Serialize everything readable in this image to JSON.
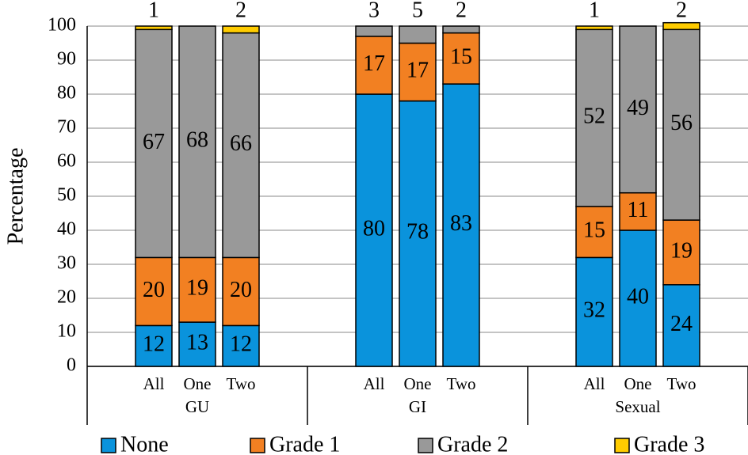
{
  "chart_data": {
    "type": "stacked_bar",
    "y_label": "Percentage",
    "groups": [
      {
        "name": "GU",
        "categories": [
          "All",
          "One",
          "Two"
        ]
      },
      {
        "name": "GI",
        "categories": [
          "All",
          "One",
          "Two"
        ]
      },
      {
        "name": "Sexual",
        "categories": [
          "All",
          "One",
          "Two"
        ]
      }
    ],
    "series": [
      {
        "name": "None",
        "color": "#0a93dc",
        "values": [
          12,
          13,
          12,
          80,
          78,
          83,
          32,
          40,
          24
        ]
      },
      {
        "name": "Grade 1",
        "color": "#f28022",
        "values": [
          20,
          19,
          20,
          17,
          17,
          15,
          15,
          11,
          19
        ]
      },
      {
        "name": "Grade 2",
        "color": "#999999",
        "values": [
          67,
          68,
          66,
          3,
          5,
          2,
          52,
          49,
          56
        ]
      },
      {
        "name": "Grade 3",
        "color": "#ffcc00",
        "values": [
          1,
          0,
          2,
          0,
          0,
          0,
          1,
          0,
          2
        ]
      }
    ],
    "ylim": [
      0,
      100
    ],
    "yticks": [
      0,
      10,
      20,
      30,
      40,
      50,
      60,
      70,
      80,
      90,
      100
    ],
    "grid": true
  }
}
